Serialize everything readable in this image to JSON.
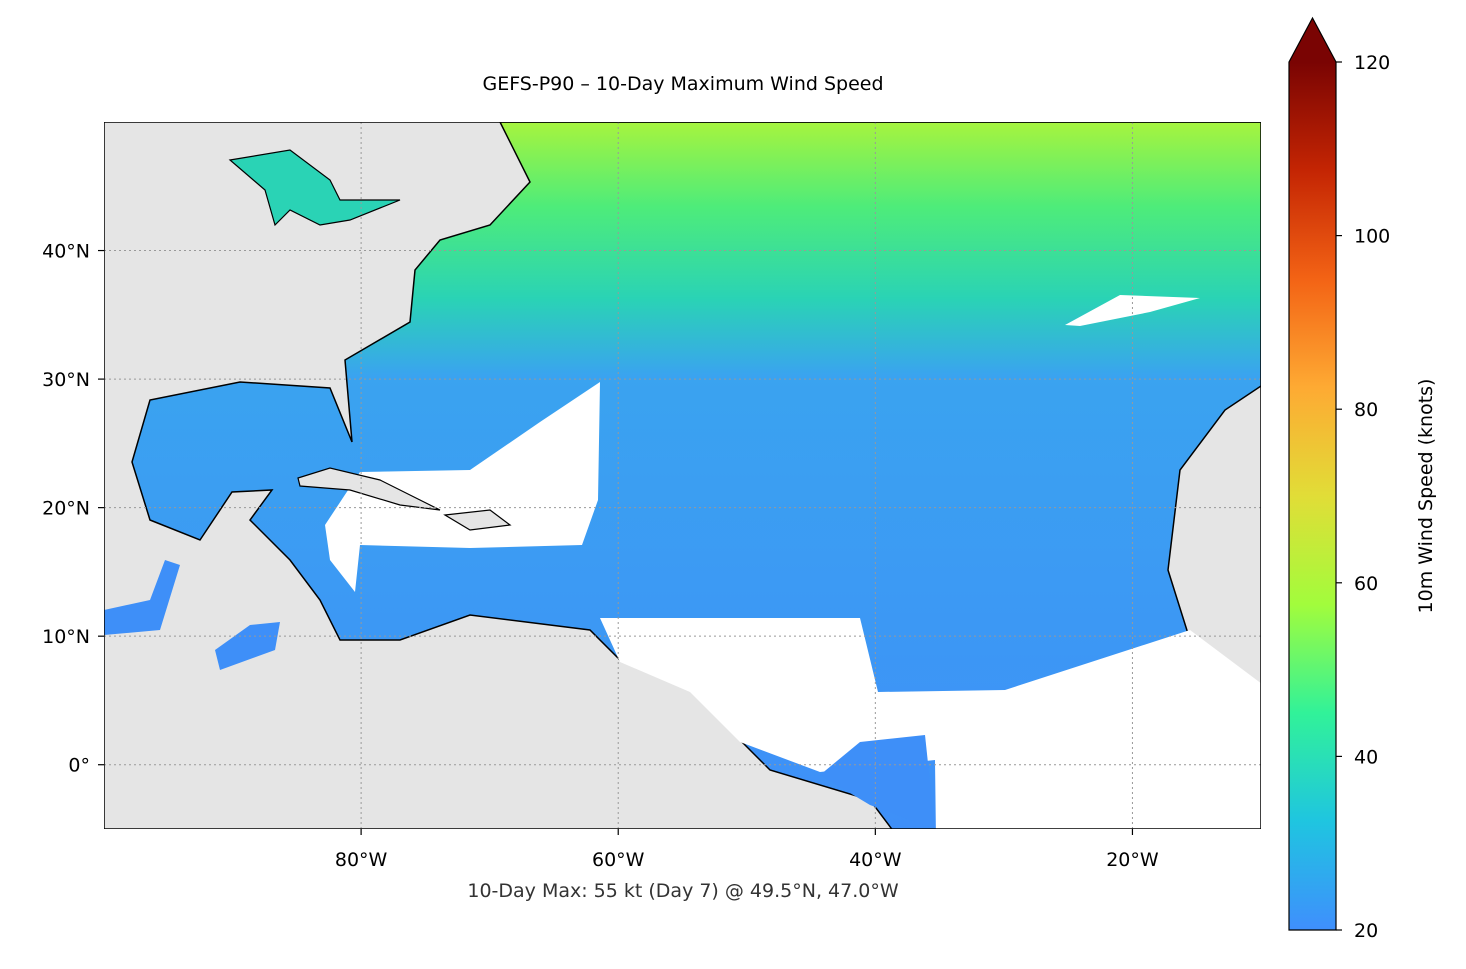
{
  "chart_data": {
    "type": "map",
    "title": "GEFS-P90 – 10-Day Maximum Wind Speed",
    "annotation": "10-Day Max: 55 kt (Day 7) @ 49.5°N, 47.0°W",
    "xlim": [
      -100,
      -10
    ],
    "ylim": [
      -5,
      50
    ],
    "xticks": [
      {
        "value": -80,
        "label": "80°W"
      },
      {
        "value": -60,
        "label": "60°W"
      },
      {
        "value": -40,
        "label": "40°W"
      },
      {
        "value": -20,
        "label": "20°W"
      }
    ],
    "yticks": [
      {
        "value": 0,
        "label": "0°"
      },
      {
        "value": 10,
        "label": "10°N"
      },
      {
        "value": 20,
        "label": "20°N"
      },
      {
        "value": 30,
        "label": "30°N"
      },
      {
        "value": 40,
        "label": "40°N"
      }
    ],
    "grid": true,
    "colorbar": {
      "label": "10m Wind Speed (knots)",
      "lim": [
        20,
        120
      ],
      "ticks": [
        20,
        40,
        60,
        80,
        100,
        120
      ],
      "extend": "max",
      "colors": [
        "#3f8ffd",
        "#1fc5e0",
        "#31f299",
        "#a2fc3c",
        "#e1dd37",
        "#feaa33",
        "#f36315",
        "#c42503",
        "#7a0403"
      ]
    }
  }
}
